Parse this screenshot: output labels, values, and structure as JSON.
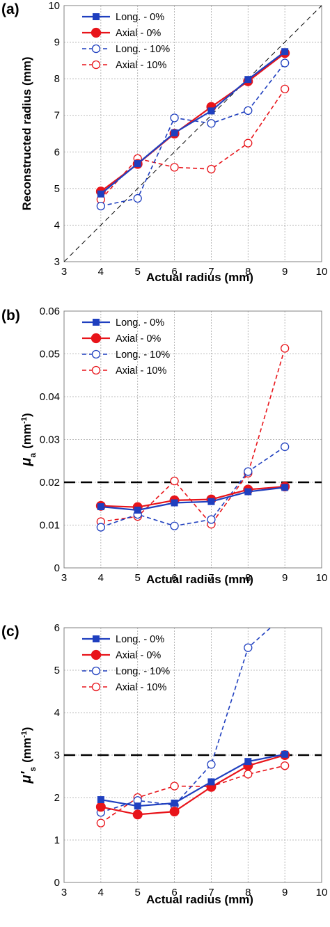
{
  "chart_data": [
    {
      "panel_label": "(a)",
      "type": "line",
      "xlabel": "Actual radius (mm)",
      "ylabel": "Reconstructed  radius (mm)",
      "xlim": [
        3,
        10
      ],
      "ylim": [
        3,
        10
      ],
      "x_ticks": [
        "3",
        "4",
        "5",
        "6",
        "7",
        "8",
        "9",
        "10"
      ],
      "y_ticks": [
        "3",
        "4",
        "5",
        "6",
        "7",
        "8",
        "9",
        "10"
      ],
      "grid": true,
      "legend_position": "top-left",
      "x": [
        4,
        5,
        6,
        7,
        8,
        9
      ],
      "series": [
        {
          "name": "Long. - 0%",
          "values": [
            4.85,
            5.68,
            6.52,
            7.12,
            7.98,
            8.74
          ]
        },
        {
          "name": "Axial - 0%",
          "values": [
            4.92,
            5.67,
            6.5,
            7.23,
            7.93,
            8.7
          ]
        },
        {
          "name": "Long. - 10%",
          "values": [
            4.52,
            4.73,
            6.93,
            6.78,
            7.13,
            8.43
          ]
        },
        {
          "name": "Axial - 10%",
          "values": [
            4.7,
            5.82,
            5.58,
            5.53,
            6.24,
            7.72
          ]
        }
      ],
      "reference_line": {
        "type": "identity",
        "from": [
          3,
          3
        ],
        "to": [
          10,
          10
        ]
      }
    },
    {
      "panel_label": "(b)",
      "type": "line",
      "xlabel": "Actual radius (mm)",
      "ylabel_main": "μ",
      "ylabel_sub": "a",
      "ylabel_unit": "(mm",
      "ylabel_sup": "-1",
      "ylabel_close": ")",
      "xlim": [
        3,
        10
      ],
      "ylim": [
        0,
        0.06
      ],
      "x_ticks": [
        "3",
        "4",
        "5",
        "6",
        "7",
        "8",
        "9",
        "10"
      ],
      "y_ticks": [
        "0",
        "0.01",
        "0.02",
        "0.03",
        "0.04",
        "0.05",
        "0.06"
      ],
      "grid": true,
      "legend_position": "top-left",
      "x": [
        4,
        5,
        6,
        7,
        8,
        9
      ],
      "series": [
        {
          "name": "Long. - 0%",
          "values": [
            0.0143,
            0.0135,
            0.0152,
            0.0155,
            0.0178,
            0.0188
          ]
        },
        {
          "name": "Axial - 0%",
          "values": [
            0.0145,
            0.0142,
            0.0158,
            0.016,
            0.0183,
            0.019
          ]
        },
        {
          "name": "Long. - 10%",
          "values": [
            0.0095,
            0.0125,
            0.0098,
            0.0113,
            0.0225,
            0.0283
          ]
        },
        {
          "name": "Axial - 10%",
          "values": [
            0.0108,
            0.012,
            0.0203,
            0.0102,
            0.0221,
            0.0513
          ]
        }
      ],
      "reference_line": {
        "type": "horizontal",
        "y": 0.02
      }
    },
    {
      "panel_label": "(c)",
      "type": "line",
      "xlabel": "Actual radius (mm)",
      "ylabel_main": "μ'",
      "ylabel_sub": "s",
      "ylabel_unit": "(mm",
      "ylabel_sup": "-1",
      "ylabel_close": ")",
      "xlim": [
        3,
        10
      ],
      "ylim": [
        0,
        6
      ],
      "x_ticks": [
        "3",
        "4",
        "5",
        "6",
        "7",
        "8",
        "9",
        "10"
      ],
      "y_ticks": [
        "0",
        "1",
        "2",
        "3",
        "4",
        "5",
        "6"
      ],
      "grid": true,
      "legend_position": "top-left",
      "x": [
        4,
        5,
        6,
        7,
        8,
        9
      ],
      "series": [
        {
          "name": "Long. - 0%",
          "values": [
            1.95,
            1.8,
            1.87,
            2.37,
            2.85,
            3.02
          ]
        },
        {
          "name": "Axial - 0%",
          "values": [
            1.78,
            1.6,
            1.67,
            2.25,
            2.75,
            3.0
          ]
        },
        {
          "name": "Long. - 10%",
          "values": [
            1.65,
            1.93,
            1.82,
            2.78,
            5.53,
            6.3
          ]
        },
        {
          "name": "Axial - 10%",
          "values": [
            1.4,
            2.0,
            2.27,
            2.26,
            2.55,
            2.75
          ]
        }
      ],
      "reference_line": {
        "type": "horizontal",
        "y": 3
      }
    }
  ],
  "colors": {
    "blue": "#1f3fbf",
    "red": "#e8141a",
    "red_light": "#c0504d",
    "grid": "#a6a6a6",
    "reference": "#000000"
  }
}
